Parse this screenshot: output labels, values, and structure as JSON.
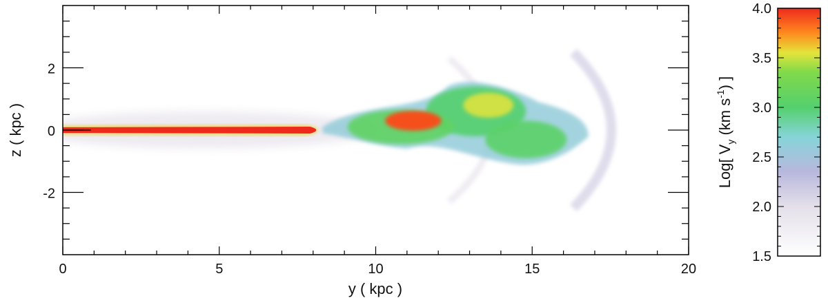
{
  "chart_data": {
    "type": "heatmap",
    "title": "",
    "xlabel": "y ( kpc )",
    "ylabel": "z ( kpc )",
    "xlim": [
      0,
      20
    ],
    "ylim": [
      -4,
      4
    ],
    "x_ticks": [
      0,
      5,
      10,
      15,
      20
    ],
    "x_tick_labels": [
      "0",
      "5",
      "10",
      "15",
      "20"
    ],
    "y_ticks": [
      -2,
      0,
      2
    ],
    "y_tick_labels": [
      "-2",
      "0",
      "2"
    ],
    "colorbar": {
      "label_parts": [
        "Log[ V",
        "y",
        " (km s",
        "-1",
        ") ]"
      ],
      "range": [
        1.5,
        4.0
      ],
      "ticks": [
        1.5,
        2.0,
        2.5,
        3.0,
        3.5,
        4.0
      ],
      "tick_labels": [
        "1.5",
        "2.0",
        "2.5",
        "3.0",
        "3.5",
        "4.0"
      ],
      "stops": [
        {
          "value": 1.5,
          "color": "#ffffff"
        },
        {
          "value": 2.0,
          "color": "#e4dfe9"
        },
        {
          "value": 2.35,
          "color": "#b8b8dd"
        },
        {
          "value": 2.7,
          "color": "#86d4d8"
        },
        {
          "value": 3.0,
          "color": "#55d06e"
        },
        {
          "value": 3.35,
          "color": "#7fd94a"
        },
        {
          "value": 3.55,
          "color": "#e4e43a"
        },
        {
          "value": 3.75,
          "color": "#ff8a1f"
        },
        {
          "value": 4.0,
          "color": "#ee2a1c"
        }
      ]
    },
    "features": [
      {
        "name": "jet-core",
        "y_range": [
          0,
          8.3
        ],
        "z_center": 0,
        "log_vy": 4.0
      },
      {
        "name": "jet-head-knot",
        "y_center": 11.2,
        "z_center": 0.3,
        "log_vy": 3.9
      },
      {
        "name": "cocoon",
        "y_range": [
          8.3,
          16.8
        ],
        "z_range": [
          -1.2,
          1.7
        ],
        "log_vy": 3.0
      },
      {
        "name": "bow-shock",
        "y_center": 17.2,
        "z_range": [
          -2.5,
          2.5
        ],
        "log_vy": 2.1
      }
    ]
  }
}
